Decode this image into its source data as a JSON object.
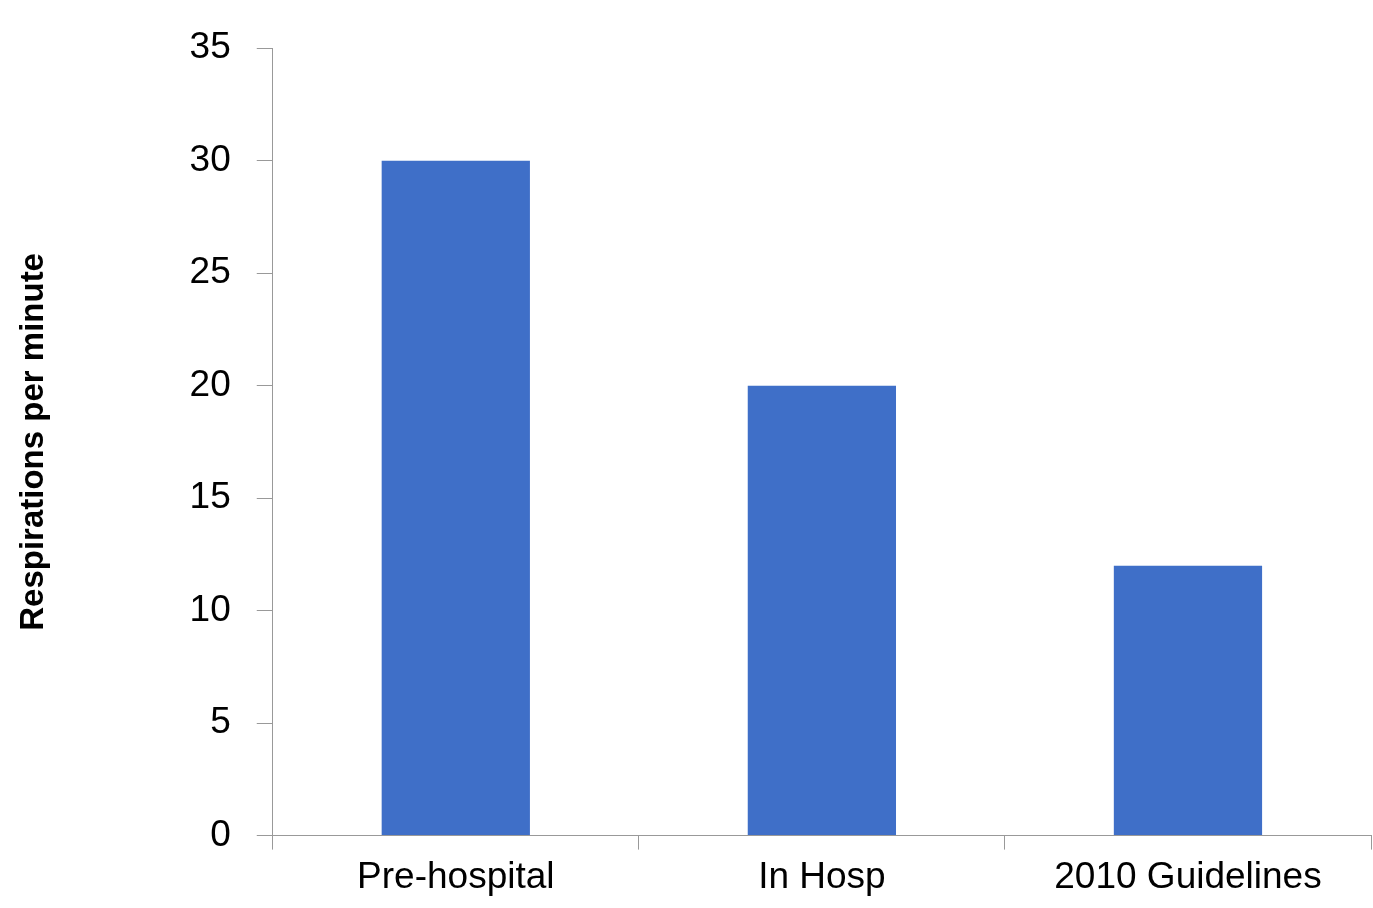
{
  "chart_data": {
    "type": "bar",
    "ylabel": "Respirations per minute",
    "categories": [
      "Pre-hospital",
      "In Hosp",
      "2010 Guidelines"
    ],
    "values": [
      30,
      20,
      12
    ],
    "color": "#3f6fc8",
    "ylim": [
      0,
      35
    ],
    "yticks": [
      0,
      5,
      10,
      15,
      20,
      25,
      30,
      35
    ],
    "grid": false,
    "legend": false
  }
}
